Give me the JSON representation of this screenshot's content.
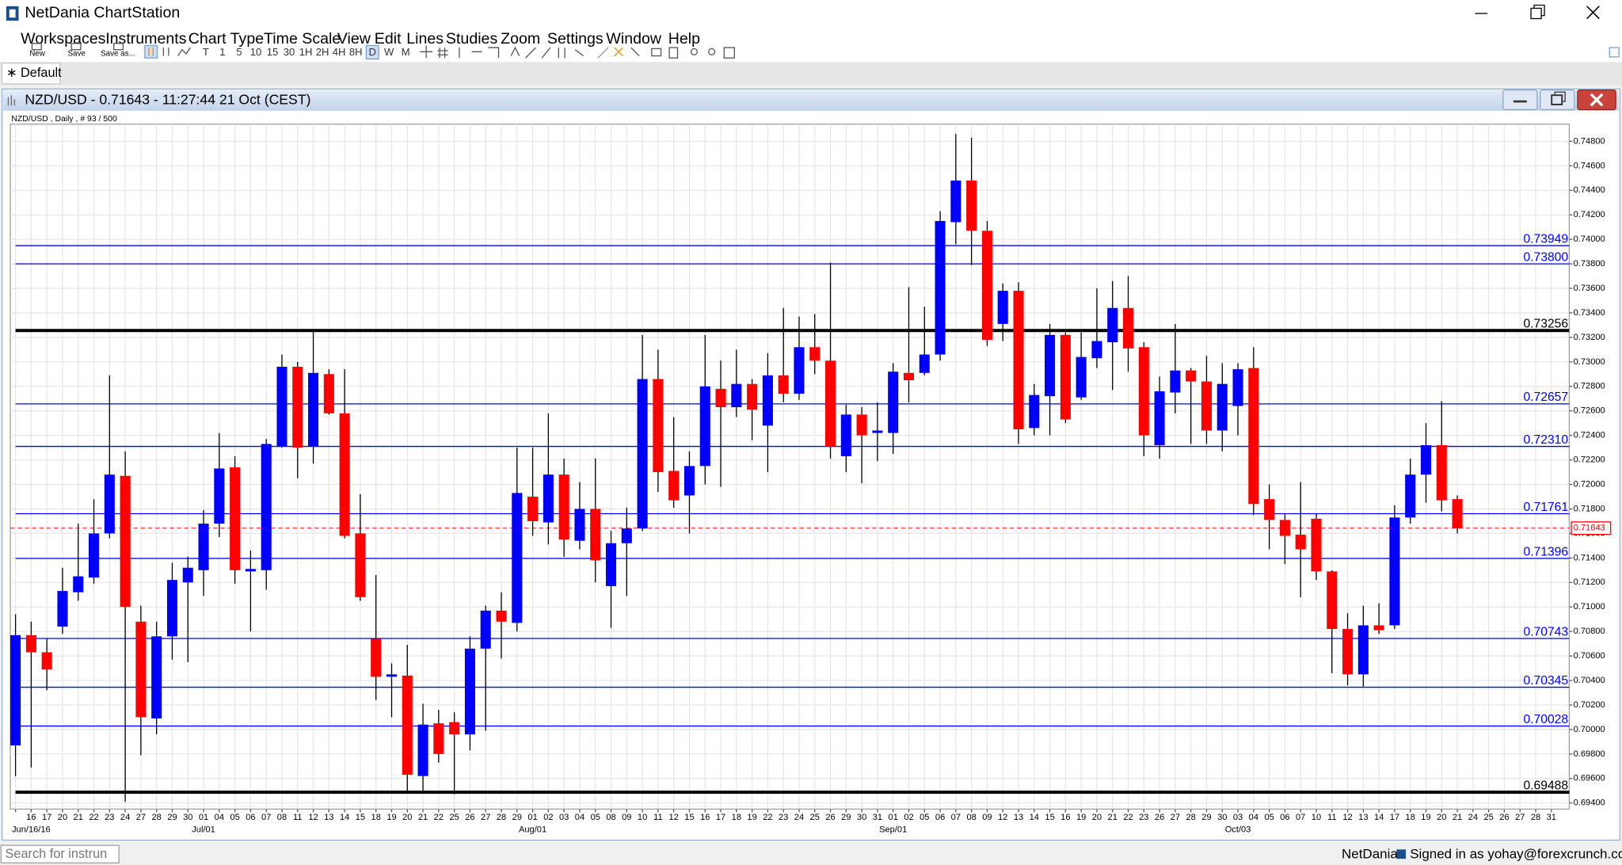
{
  "window": {
    "title": "NetDania ChartStation"
  },
  "menu": [
    "Workspaces",
    "Instruments",
    "Chart Type",
    "Time Scale",
    "View",
    "Edit",
    "Lines",
    "Studies",
    "Zoom",
    "Settings",
    "Window",
    "Help"
  ],
  "toolbar": {
    "file_buttons": [
      "New",
      "Save",
      "Save as..."
    ],
    "timescales": [
      "T",
      "1",
      "5",
      "10",
      "15",
      "30",
      "1H",
      "2H",
      "4H",
      "8H",
      "D",
      "W",
      "M"
    ],
    "active": "D"
  },
  "tabs": [
    "∗ Default"
  ],
  "chart_window": {
    "title": "NZD/USD - 0.71643 - 11:27:44 21 Oct (CEST)",
    "info": "NZD/USD , Daily , # 93 / 500"
  },
  "status_bar": {
    "search_placeholder": "Search for instrun",
    "brand": "NetDania",
    "signed_in": "Signed in as yohay@forexcrunch.com"
  },
  "chart_data": {
    "type": "candlestick",
    "up_color": "#0000ff",
    "down_color": "#ff0000",
    "grid": true,
    "categories": [
      null,
      "16",
      "17",
      "20",
      "21",
      "22",
      "23",
      "24",
      "27",
      "28",
      "29",
      "30",
      "01",
      "04",
      "05",
      "06",
      "07",
      "08",
      "11",
      "12",
      "13",
      "14",
      "15",
      "18",
      "19",
      "20",
      "21",
      "22",
      "25",
      "26",
      "27",
      "28",
      "29",
      "01",
      "02",
      "03",
      "04",
      "05",
      "08",
      "09",
      "10",
      "11",
      "12",
      "15",
      "16",
      "17",
      "18",
      "19",
      "22",
      "23",
      "24",
      "25",
      "26",
      "29",
      "30",
      "31",
      "01",
      "02",
      "05",
      "06",
      "07",
      "08",
      "09",
      "12",
      "13",
      "14",
      "15",
      "16",
      "19",
      "20",
      "21",
      "22",
      "23",
      "26",
      "27",
      "28",
      "29",
      "30",
      "03",
      "04",
      "05",
      "06",
      "07",
      "10",
      "11",
      "12",
      "13",
      "14",
      "17",
      "18",
      "19",
      "20",
      "21",
      "24",
      "25",
      "26",
      "27",
      "28",
      "31"
    ],
    "month_labels": [
      null,
      "Jun/16/16",
      null,
      null,
      null,
      null,
      null,
      null,
      null,
      null,
      null,
      null,
      "Jul/01",
      null,
      null,
      null,
      null,
      null,
      null,
      null,
      null,
      null,
      null,
      null,
      null,
      null,
      null,
      null,
      null,
      null,
      null,
      null,
      null,
      "Aug/01",
      null,
      null,
      null,
      null,
      null,
      null,
      null,
      null,
      null,
      null,
      null,
      null,
      null,
      null,
      null,
      null,
      null,
      null,
      null,
      null,
      null,
      null,
      "Sep/01",
      null,
      null,
      null,
      null,
      null,
      null,
      null,
      null,
      null,
      null,
      null,
      null,
      null,
      null,
      null,
      null,
      null,
      null,
      null,
      null,
      null,
      "Oct/03",
      null,
      null,
      null,
      null,
      null,
      null,
      null,
      null,
      null,
      null,
      null,
      null,
      null,
      null,
      null,
      null,
      null,
      null,
      null,
      null
    ],
    "open": [
      0.6987,
      0.7077,
      0.7063,
      0.7084,
      0.7112,
      0.7124,
      0.716,
      0.7207,
      0.7088,
      0.7009,
      0.7076,
      0.712,
      0.713,
      0.7168,
      0.7214,
      0.7129,
      0.713,
      0.7231,
      0.7296,
      0.7231,
      0.729,
      0.7258,
      0.716,
      0.7074,
      0.7043,
      0.7044,
      0.6962,
      0.7005,
      0.7006,
      0.6996,
      0.7066,
      0.7097,
      0.7087,
      0.719,
      0.7169,
      0.7208,
      0.7154,
      0.718,
      0.7117,
      0.7152,
      0.7164,
      0.7286,
      0.7211,
      0.7191,
      0.7215,
      0.7278,
      0.7263,
      0.7282,
      0.7248,
      0.7289,
      0.7274,
      0.7312,
      0.7301,
      0.7223,
      0.7257,
      0.7242,
      0.7242,
      0.7291,
      0.7291,
      0.7306,
      0.7414,
      0.7448,
      0.7407,
      0.7331,
      0.7358,
      0.7246,
      0.7272,
      0.7322,
      0.7271,
      0.7303,
      0.7316,
      0.7344,
      0.7312,
      0.7232,
      0.7275,
      0.7293,
      0.7284,
      0.7244,
      0.7264,
      0.7295,
      0.7188,
      0.7171,
      0.7159,
      0.7172,
      0.7129,
      0.7082,
      0.7045,
      0.7085,
      0.7085,
      0.7173,
      0.7208,
      0.7232,
      0.7188,
      null,
      null,
      null,
      null,
      null,
      null
    ],
    "high": [
      0.7094,
      0.7088,
      0.7074,
      0.7132,
      0.7168,
      0.7188,
      0.7289,
      0.7227,
      0.7101,
      0.7088,
      0.7136,
      0.7141,
      0.7179,
      0.7242,
      0.7223,
      0.7146,
      0.7237,
      0.7306,
      0.73,
      0.7326,
      0.7294,
      0.7294,
      0.7192,
      0.7126,
      0.7054,
      0.7069,
      0.7021,
      0.7016,
      0.7014,
      0.7076,
      0.7101,
      0.7112,
      0.723,
      0.723,
      0.7258,
      0.7221,
      0.7202,
      0.7221,
      0.7162,
      0.7181,
      0.7322,
      0.731,
      0.7255,
      0.7227,
      0.7322,
      0.7301,
      0.731,
      0.7286,
      0.7307,
      0.7344,
      0.7337,
      0.7339,
      0.7381,
      0.7265,
      0.7263,
      0.7267,
      0.7299,
      0.7361,
      0.7345,
      0.7423,
      0.7486,
      0.7483,
      0.7415,
      0.7364,
      0.7365,
      0.7282,
      0.7331,
      0.7324,
      0.7324,
      0.736,
      0.7366,
      0.737,
      0.7316,
      0.7288,
      0.7331,
      0.7295,
      0.7305,
      0.7299,
      0.7299,
      0.7312,
      0.72,
      0.7176,
      0.7202,
      0.7176,
      0.713,
      0.7095,
      0.7101,
      0.7103,
      0.7183,
      0.7221,
      0.725,
      0.7268,
      0.7191,
      null,
      null,
      null,
      null,
      null,
      null
    ],
    "low": [
      0.6962,
      0.6969,
      0.7032,
      0.7078,
      0.7105,
      0.7119,
      0.7156,
      0.6941,
      0.6979,
      0.6996,
      0.7057,
      0.7055,
      0.7109,
      0.7157,
      0.7119,
      0.708,
      0.7114,
      0.723,
      0.7205,
      0.7217,
      0.7257,
      0.7156,
      0.7105,
      0.7024,
      0.701,
      0.695,
      0.6949,
      0.6973,
      0.6947,
      0.6983,
      0.6999,
      0.7058,
      0.708,
      0.7158,
      0.7151,
      0.7141,
      0.7147,
      0.712,
      0.7083,
      0.7109,
      0.7162,
      0.7194,
      0.7181,
      0.716,
      0.72,
      0.7198,
      0.7255,
      0.7236,
      0.721,
      0.7267,
      0.7269,
      0.729,
      0.7221,
      0.721,
      0.7201,
      0.7219,
      0.7225,
      0.7267,
      0.7289,
      0.7301,
      0.7396,
      0.7379,
      0.7313,
      0.7317,
      0.7233,
      0.724,
      0.724,
      0.725,
      0.7269,
      0.7295,
      0.7277,
      0.7292,
      0.7223,
      0.7221,
      0.7258,
      0.7233,
      0.7233,
      0.7227,
      0.724,
      0.7175,
      0.7147,
      0.7135,
      0.7108,
      0.7122,
      0.7046,
      0.7036,
      0.7035,
      0.7078,
      0.7082,
      0.7168,
      0.7185,
      0.7178,
      0.716,
      null,
      null,
      null,
      null,
      null,
      null
    ],
    "close": [
      0.7077,
      0.7063,
      0.7049,
      0.7113,
      0.7125,
      0.716,
      0.7208,
      0.71,
      0.701,
      0.7076,
      0.7122,
      0.7132,
      0.7168,
      0.7213,
      0.713,
      0.7131,
      0.7233,
      0.7296,
      0.723,
      0.7291,
      0.7258,
      0.7158,
      0.7108,
      0.7043,
      0.7045,
      0.6963,
      0.7004,
      0.698,
      0.6996,
      0.7066,
      0.7097,
      0.7088,
      0.7193,
      0.717,
      0.7208,
      0.7155,
      0.718,
      0.7138,
      0.7152,
      0.7164,
      0.7286,
      0.721,
      0.7187,
      0.7215,
      0.728,
      0.7263,
      0.7282,
      0.7261,
      0.7289,
      0.7274,
      0.7312,
      0.7301,
      0.7231,
      0.7257,
      0.724,
      0.7244,
      0.7292,
      0.7285,
      0.7306,
      0.7415,
      0.7448,
      0.7407,
      0.7318,
      0.7358,
      0.7245,
      0.7273,
      0.7322,
      0.7253,
      0.7304,
      0.7317,
      0.7344,
      0.7311,
      0.724,
      0.7276,
      0.7293,
      0.7284,
      0.7244,
      0.7282,
      0.7294,
      0.7184,
      0.7171,
      0.7158,
      0.7147,
      0.7129,
      0.7082,
      0.7045,
      0.7085,
      0.7081,
      0.7173,
      0.7208,
      0.7232,
      0.7187,
      0.71643,
      null,
      null,
      null,
      null,
      null,
      null
    ],
    "ylim": [
      0.6935,
      0.7494
    ],
    "yticks": [
      {
        "value": 0.748,
        "label": "0.74800"
      },
      {
        "value": 0.746,
        "label": "0.74600"
      },
      {
        "value": 0.744,
        "label": "0.74400"
      },
      {
        "value": 0.742,
        "label": "0.74200"
      },
      {
        "value": 0.74,
        "label": "0.74000"
      },
      {
        "value": 0.738,
        "label": "0.73800"
      },
      {
        "value": 0.736,
        "label": "0.73600"
      },
      {
        "value": 0.734,
        "label": "0.73400"
      },
      {
        "value": 0.732,
        "label": "0.73200"
      },
      {
        "value": 0.73,
        "label": "0.73000"
      },
      {
        "value": 0.728,
        "label": "0.72800"
      },
      {
        "value": 0.726,
        "label": "0.72600"
      },
      {
        "value": 0.724,
        "label": "0.72400"
      },
      {
        "value": 0.722,
        "label": "0.72200"
      },
      {
        "value": 0.72,
        "label": "0.72000"
      },
      {
        "value": 0.718,
        "label": "0.71800"
      },
      {
        "value": 0.716,
        "label": "0.71600"
      },
      {
        "value": 0.714,
        "label": "0.71400"
      },
      {
        "value": 0.712,
        "label": "0.71200"
      },
      {
        "value": 0.71,
        "label": "0.71000"
      },
      {
        "value": 0.708,
        "label": "0.70800"
      },
      {
        "value": 0.706,
        "label": "0.70600"
      },
      {
        "value": 0.704,
        "label": "0.70400"
      },
      {
        "value": 0.702,
        "label": "0.70200"
      },
      {
        "value": 0.7,
        "label": "0.70000"
      },
      {
        "value": 0.698,
        "label": "0.69800"
      },
      {
        "value": 0.696,
        "label": "0.69600"
      },
      {
        "value": 0.694,
        "label": "0.69400"
      }
    ],
    "levels": [
      {
        "value": 0.73949,
        "label": "0.73949",
        "color": "#0000ff",
        "width": 1
      },
      {
        "value": 0.738,
        "label": "0.73800",
        "color": "#0000ff",
        "width": 1
      },
      {
        "value": 0.73256,
        "label": "0.73256",
        "color": "#000000",
        "width": 3
      },
      {
        "value": 0.72657,
        "label": "0.72657",
        "color": "#0000ff",
        "width": 1
      },
      {
        "value": 0.7231,
        "label": "0.72310",
        "color": "#0000ff",
        "width": 1
      },
      {
        "value": 0.71761,
        "label": "0.71761",
        "color": "#0000ff",
        "width": 1
      },
      {
        "value": 0.71396,
        "label": "0.71396",
        "color": "#0000ff",
        "width": 1
      },
      {
        "value": 0.70743,
        "label": "0.70743",
        "color": "#0000ff",
        "width": 1
      },
      {
        "value": 0.70345,
        "label": "0.70345",
        "color": "#0000ff",
        "width": 1
      },
      {
        "value": 0.70028,
        "label": "0.70028",
        "color": "#0000ff",
        "width": 1
      },
      {
        "value": 0.69488,
        "label": "0.69488",
        "color": "#000000",
        "width": 3
      }
    ],
    "last_price": {
      "value": 0.71643,
      "label": "0.71643",
      "color": "#ff0000"
    }
  }
}
